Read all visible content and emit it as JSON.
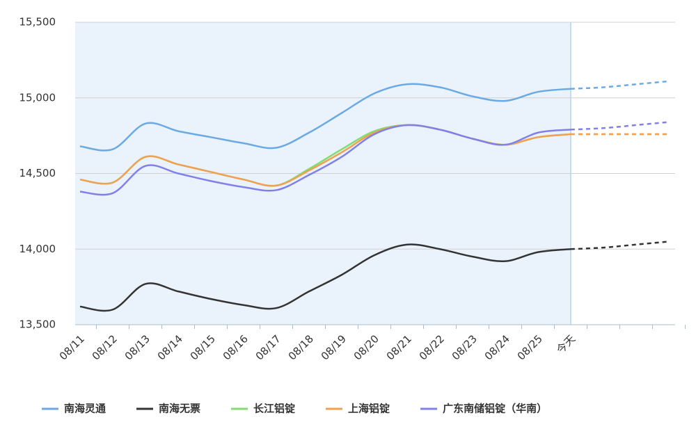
{
  "chart_data": {
    "type": "line",
    "categories": [
      "08/11",
      "08/12",
      "08/13",
      "08/14",
      "08/15",
      "08/16",
      "08/17",
      "08/18",
      "08/19",
      "08/20",
      "08/21",
      "08/22",
      "08/23",
      "08/24",
      "08/25",
      "今天",
      null,
      null,
      null
    ],
    "series": [
      {
        "name": "南海灵通",
        "color": "#6aaae4",
        "values": [
          14680,
          14660,
          14830,
          14780,
          14740,
          14700,
          14670,
          14770,
          14900,
          15030,
          15090,
          15070,
          15010,
          14980,
          15040,
          15060,
          15070,
          15090,
          15110
        ]
      },
      {
        "name": "南海无票",
        "color": "#333333",
        "values": [
          13620,
          13600,
          13770,
          13720,
          13670,
          13630,
          13610,
          13720,
          13830,
          13960,
          14030,
          14000,
          13950,
          13920,
          13980,
          14000,
          14010,
          14030,
          14050
        ]
      },
      {
        "name": "长江铝锭",
        "color": "#80dd70",
        "values": [
          14460,
          14440,
          14610,
          14560,
          14510,
          14460,
          14420,
          14530,
          14660,
          14780,
          14820,
          14790,
          14730,
          14690,
          14740,
          14760,
          14760,
          14760,
          14760
        ]
      },
      {
        "name": "上海铝锭",
        "color": "#f0a050",
        "values": [
          14460,
          14440,
          14610,
          14560,
          14510,
          14460,
          14420,
          14520,
          14640,
          14770,
          14820,
          14790,
          14730,
          14690,
          14740,
          14760,
          14760,
          14760,
          14760
        ]
      },
      {
        "name": "广东南储铝锭（华南）",
        "color": "#8080ea",
        "values": [
          14380,
          14370,
          14550,
          14500,
          14450,
          14410,
          14390,
          14490,
          14610,
          14760,
          14820,
          14790,
          14730,
          14690,
          14770,
          14790,
          14800,
          14820,
          14840
        ]
      }
    ],
    "ylim": [
      13500,
      15500
    ],
    "yticks": [
      {
        "value": 13500,
        "label": "13,500"
      },
      {
        "value": 14000,
        "label": "14,000"
      },
      {
        "value": 14500,
        "label": "14,500"
      },
      {
        "value": 15000,
        "label": "15,000"
      },
      {
        "value": 15500,
        "label": "15,500"
      }
    ],
    "grid": true
  }
}
